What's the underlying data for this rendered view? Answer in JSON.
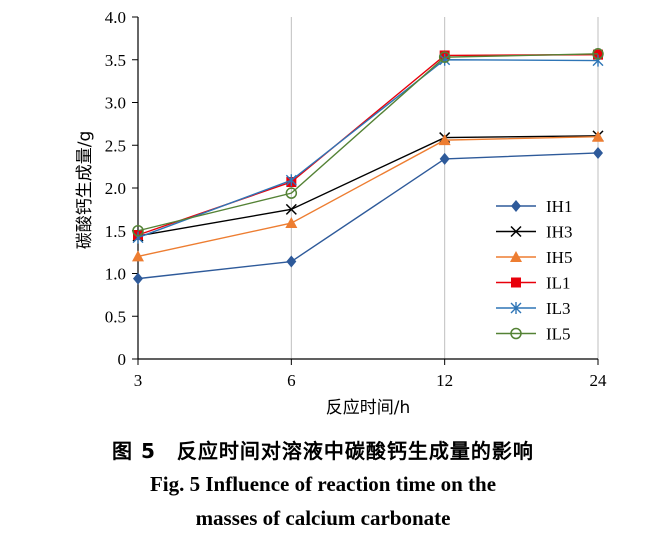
{
  "chart_data": {
    "type": "line",
    "xlabel": "反应时间/h",
    "ylabel": "碳酸钙生成量/g",
    "categories": [
      "3",
      "6",
      "12",
      "24"
    ],
    "ylim": [
      0,
      4.0
    ],
    "yticks": [
      "0",
      "0.5",
      "1.0",
      "1.5",
      "2.0",
      "2.5",
      "3.0",
      "3.5",
      "4.0"
    ],
    "legend_position": "right",
    "series": [
      {
        "name": "IH1",
        "values": [
          0.94,
          1.14,
          2.34,
          2.41
        ],
        "color": "#2e5a9a",
        "marker": "diamond"
      },
      {
        "name": "IH3",
        "values": [
          1.44,
          1.75,
          2.59,
          2.61
        ],
        "color": "#000000",
        "marker": "x"
      },
      {
        "name": "IH5",
        "values": [
          1.2,
          1.59,
          2.56,
          2.6
        ],
        "color": "#ed7d31",
        "marker": "triangle"
      },
      {
        "name": "IL1",
        "values": [
          1.45,
          2.07,
          3.55,
          3.56
        ],
        "color": "#e8000b",
        "marker": "square"
      },
      {
        "name": "IL3",
        "values": [
          1.42,
          2.09,
          3.5,
          3.49
        ],
        "color": "#2e75b6",
        "marker": "asterisk"
      },
      {
        "name": "IL5",
        "values": [
          1.5,
          1.94,
          3.53,
          3.57
        ],
        "color": "#548235",
        "marker": "circle"
      }
    ]
  },
  "caption": {
    "cn": "图 5　反应时间对溶液中碳酸钙生成量的影响",
    "en_line1": "Fig.  5   Influence of reaction time on the",
    "en_line2": "masses of calcium carbonate"
  }
}
